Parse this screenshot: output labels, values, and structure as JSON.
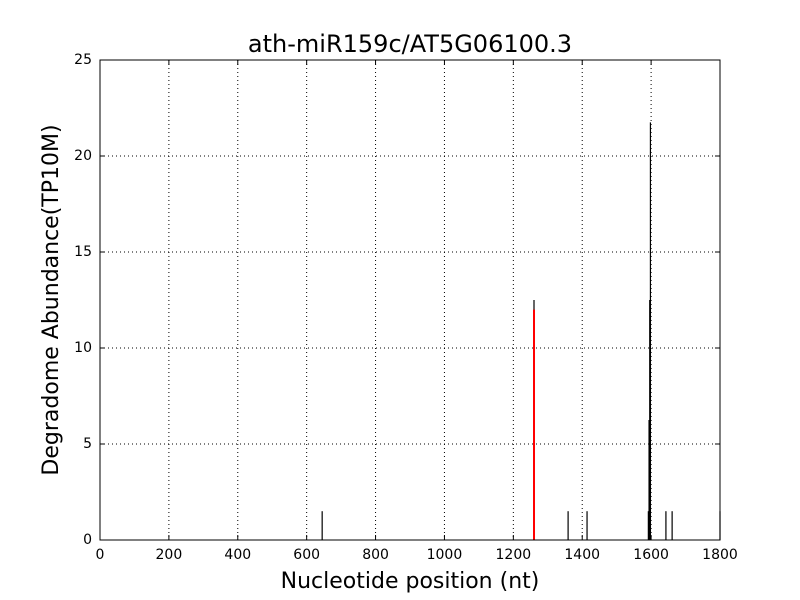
{
  "chart_data": {
    "type": "vlines",
    "title": "ath-miR159c/AT5G06100.3",
    "xlabel": "Nucleotide position (nt)",
    "ylabel": "Degradome Abundance(TP10M)",
    "xlim": [
      0,
      1800
    ],
    "xticks": [
      0,
      200,
      400,
      600,
      800,
      1000,
      1200,
      1400,
      1600,
      1800
    ],
    "ylim": [
      0,
      25
    ],
    "yticks": [
      0,
      5,
      10,
      15,
      20,
      25
    ],
    "grid": true,
    "series": [
      {
        "color": "#000000",
        "x": [
          645,
          1260,
          1359,
          1414,
          1592,
          1594,
          1596,
          1598,
          1643,
          1661,
          1800
        ],
        "values": [
          1.5,
          12.5,
          1.5,
          1.5,
          1.5,
          6.25,
          12.5,
          21.75,
          1.5,
          1.5,
          1.5
        ]
      },
      {
        "color": "#ff0000",
        "x": [
          1260
        ],
        "values": [
          12
        ]
      }
    ]
  }
}
